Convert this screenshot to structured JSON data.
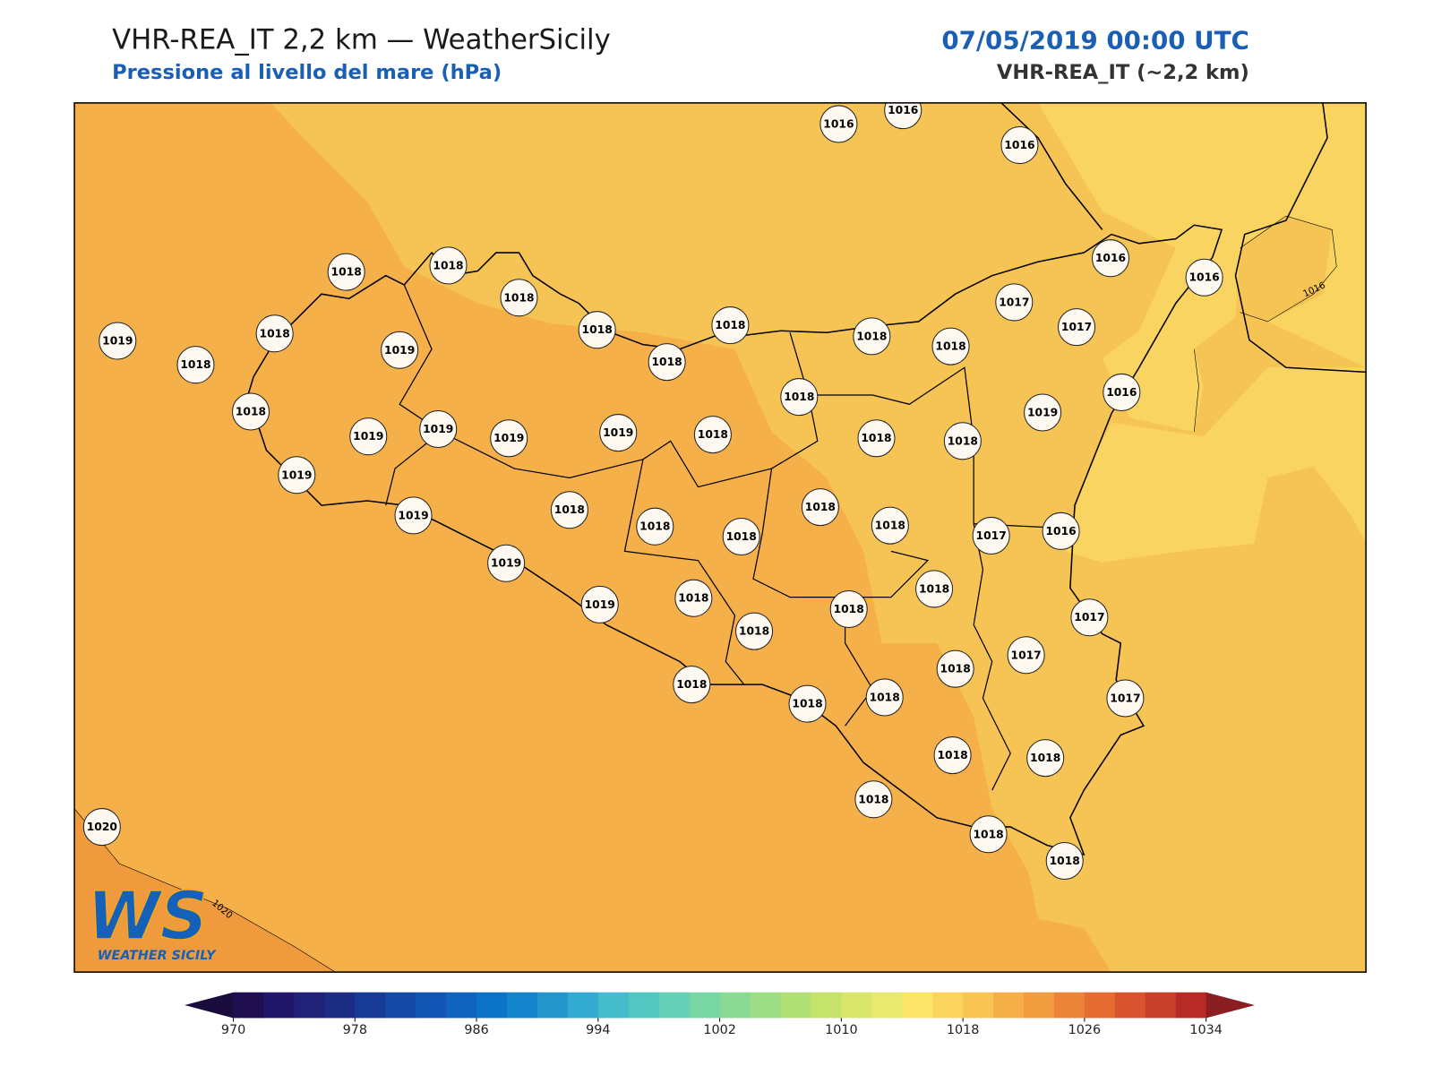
{
  "header": {
    "title": "VHR-REA_IT 2,2 km — WeatherSicily",
    "subtitle": "Pressione al livello del mare (hPa)",
    "date": "07/05/2019 00:00 UTC",
    "model": "VHR-REA_IT (~2,2 km)"
  },
  "map": {
    "stations": [
      "1016",
      "1016",
      "1016",
      "1016",
      "1016",
      "1018",
      "1018",
      "1018",
      "1018",
      "1018",
      "1018",
      "1017",
      "1017",
      "1018",
      "1018",
      "1019",
      "1018",
      "1018",
      "1019",
      "1018",
      "1016",
      "1019",
      "1018",
      "1019",
      "1019",
      "1019",
      "1019",
      "1018",
      "1018",
      "1018",
      "1019",
      "1018",
      "1018",
      "1018",
      "1018",
      "1018",
      "1017",
      "1016",
      "1019",
      "1019",
      "1018",
      "1019",
      "1018",
      "1018",
      "1017",
      "1018",
      "1017",
      "1018",
      "1018",
      "1018",
      "1018",
      "1017",
      "1018",
      "1018",
      "1018",
      "1020",
      "1018",
      "1018"
    ],
    "contour_labels": [
      "1016",
      "1020"
    ],
    "colors": {
      "low": "#f9d460",
      "mid": "#f6c454",
      "base": "#f5b04a",
      "high": "#ee9a3d"
    }
  },
  "colorbar": {
    "ticks": [
      "970",
      "978",
      "986",
      "994",
      "1002",
      "1010",
      "1018",
      "1026",
      "1034"
    ],
    "colors": [
      "#1f0f50",
      "#21166a",
      "#1f2277",
      "#1c2d83",
      "#173b95",
      "#1449a8",
      "#1156b5",
      "#0f64bf",
      "#0b74c8",
      "#1484cc",
      "#2396cc",
      "#33abd0",
      "#44bccc",
      "#52c7c2",
      "#64d0b5",
      "#76d7a5",
      "#8ad995",
      "#9cdd86",
      "#b1e074",
      "#c5e36b",
      "#d8e66b",
      "#e9e86f",
      "#fae56a",
      "#fbd45e",
      "#f8c454",
      "#f5b04a",
      "#f09c3f",
      "#eb8437",
      "#e56c32",
      "#d8542f",
      "#c8402c",
      "#b82a28"
    ],
    "extend_colors": [
      "#1a0d3e",
      "#8a1e22"
    ]
  },
  "logo": {
    "mark": "WS",
    "name": "WEATHER SICILY"
  }
}
